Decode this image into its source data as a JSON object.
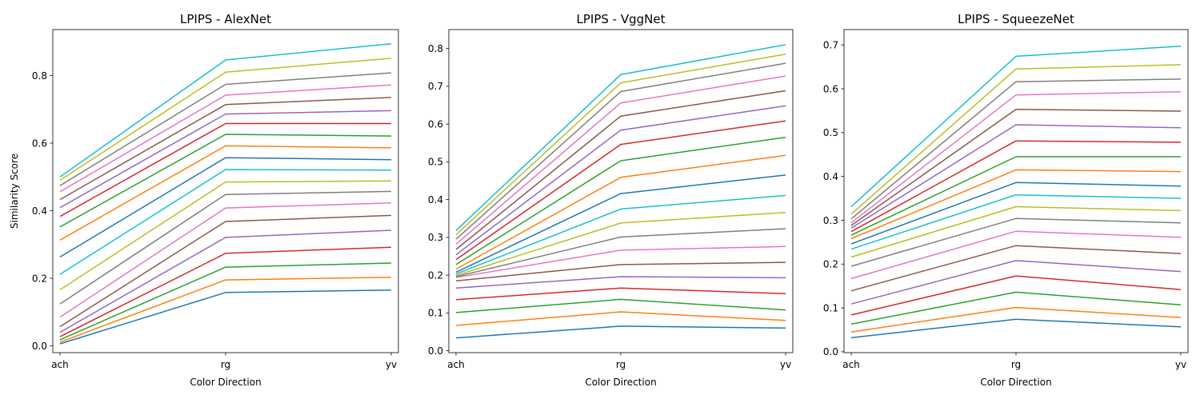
{
  "chart_data": [
    {
      "type": "line",
      "title": "LPIPS - AlexNet",
      "xlabel": "Color Direction",
      "ylabel": "Similarity Score",
      "categories": [
        "ach",
        "rg",
        "yv"
      ],
      "yticks": [
        "0.0",
        "0.2",
        "0.4",
        "0.6",
        "0.8"
      ],
      "ylim": [
        -0.02,
        0.936
      ],
      "grid": false,
      "series": [
        {
          "color": "#1f77b4",
          "values": [
            0.006,
            0.158,
            0.165
          ]
        },
        {
          "color": "#ff7f0e",
          "values": [
            0.011,
            0.195,
            0.203
          ]
        },
        {
          "color": "#2ca02c",
          "values": [
            0.018,
            0.233,
            0.245
          ]
        },
        {
          "color": "#d62728",
          "values": [
            0.027,
            0.274,
            0.292
          ]
        },
        {
          "color": "#9467bd",
          "values": [
            0.04,
            0.321,
            0.342
          ]
        },
        {
          "color": "#8c564b",
          "values": [
            0.057,
            0.368,
            0.386
          ]
        },
        {
          "color": "#e377c2",
          "values": [
            0.085,
            0.408,
            0.423
          ]
        },
        {
          "color": "#7f7f7f",
          "values": [
            0.124,
            0.448,
            0.457
          ]
        },
        {
          "color": "#bcbd22",
          "values": [
            0.166,
            0.485,
            0.488
          ]
        },
        {
          "color": "#17becf",
          "values": [
            0.212,
            0.522,
            0.52
          ]
        },
        {
          "color": "#1f77b4",
          "values": [
            0.263,
            0.557,
            0.551
          ]
        },
        {
          "color": "#ff7f0e",
          "values": [
            0.313,
            0.592,
            0.586
          ]
        },
        {
          "color": "#2ca02c",
          "values": [
            0.352,
            0.626,
            0.621
          ]
        },
        {
          "color": "#d62728",
          "values": [
            0.383,
            0.658,
            0.658
          ]
        },
        {
          "color": "#9467bd",
          "values": [
            0.409,
            0.686,
            0.696
          ]
        },
        {
          "color": "#8c564b",
          "values": [
            0.433,
            0.714,
            0.735
          ]
        },
        {
          "color": "#e377c2",
          "values": [
            0.456,
            0.742,
            0.772
          ]
        },
        {
          "color": "#7f7f7f",
          "values": [
            0.474,
            0.774,
            0.808
          ]
        },
        {
          "color": "#bcbd22",
          "values": [
            0.49,
            0.81,
            0.851
          ]
        },
        {
          "color": "#17becf",
          "values": [
            0.5,
            0.846,
            0.894
          ]
        }
      ]
    },
    {
      "type": "line",
      "title": "LPIPS - VggNet",
      "xlabel": "Color Direction",
      "ylabel": "",
      "categories": [
        "ach",
        "rg",
        "yv"
      ],
      "yticks": [
        "0.0",
        "0.1",
        "0.2",
        "0.3",
        "0.4",
        "0.5",
        "0.6",
        "0.7",
        "0.8"
      ],
      "ylim": [
        -0.005,
        0.85
      ],
      "grid": false,
      "series": [
        {
          "color": "#1f77b4",
          "values": [
            0.034,
            0.065,
            0.06
          ]
        },
        {
          "color": "#ff7f0e",
          "values": [
            0.067,
            0.103,
            0.08
          ]
        },
        {
          "color": "#2ca02c",
          "values": [
            0.101,
            0.136,
            0.108
          ]
        },
        {
          "color": "#d62728",
          "values": [
            0.135,
            0.166,
            0.151
          ]
        },
        {
          "color": "#9467bd",
          "values": [
            0.166,
            0.196,
            0.193
          ]
        },
        {
          "color": "#8c564b",
          "values": [
            0.185,
            0.228,
            0.234
          ]
        },
        {
          "color": "#e377c2",
          "values": [
            0.194,
            0.266,
            0.276
          ]
        },
        {
          "color": "#7f7f7f",
          "values": [
            0.196,
            0.301,
            0.323
          ]
        },
        {
          "color": "#bcbd22",
          "values": [
            0.199,
            0.338,
            0.366
          ]
        },
        {
          "color": "#17becf",
          "values": [
            0.203,
            0.375,
            0.411
          ]
        },
        {
          "color": "#1f77b4",
          "values": [
            0.208,
            0.416,
            0.465
          ]
        },
        {
          "color": "#ff7f0e",
          "values": [
            0.216,
            0.459,
            0.517
          ]
        },
        {
          "color": "#2ca02c",
          "values": [
            0.228,
            0.503,
            0.565
          ]
        },
        {
          "color": "#d62728",
          "values": [
            0.241,
            0.546,
            0.608
          ]
        },
        {
          "color": "#9467bd",
          "values": [
            0.254,
            0.584,
            0.648
          ]
        },
        {
          "color": "#8c564b",
          "values": [
            0.268,
            0.621,
            0.688
          ]
        },
        {
          "color": "#e377c2",
          "values": [
            0.282,
            0.656,
            0.727
          ]
        },
        {
          "color": "#7f7f7f",
          "values": [
            0.295,
            0.686,
            0.761
          ]
        },
        {
          "color": "#bcbd22",
          "values": [
            0.307,
            0.709,
            0.785
          ]
        },
        {
          "color": "#17becf",
          "values": [
            0.318,
            0.731,
            0.81
          ]
        }
      ]
    },
    {
      "type": "line",
      "title": "LPIPS - SqueezeNet",
      "xlabel": "Color Direction",
      "ylabel": "",
      "categories": [
        "ach",
        "rg",
        "yv"
      ],
      "yticks": [
        "0.0",
        "0.1",
        "0.2",
        "0.3",
        "0.4",
        "0.5",
        "0.6",
        "0.7"
      ],
      "ylim": [
        -0.002,
        0.735
      ],
      "grid": false,
      "series": [
        {
          "color": "#1f77b4",
          "values": [
            0.032,
            0.074,
            0.057
          ]
        },
        {
          "color": "#ff7f0e",
          "values": [
            0.045,
            0.101,
            0.078
          ]
        },
        {
          "color": "#2ca02c",
          "values": [
            0.063,
            0.136,
            0.107
          ]
        },
        {
          "color": "#d62728",
          "values": [
            0.084,
            0.173,
            0.142
          ]
        },
        {
          "color": "#9467bd",
          "values": [
            0.109,
            0.208,
            0.183
          ]
        },
        {
          "color": "#8c564b",
          "values": [
            0.139,
            0.242,
            0.224
          ]
        },
        {
          "color": "#e377c2",
          "values": [
            0.167,
            0.275,
            0.261
          ]
        },
        {
          "color": "#7f7f7f",
          "values": [
            0.195,
            0.304,
            0.294
          ]
        },
        {
          "color": "#bcbd22",
          "values": [
            0.216,
            0.331,
            0.322
          ]
        },
        {
          "color": "#17becf",
          "values": [
            0.234,
            0.358,
            0.35
          ]
        },
        {
          "color": "#1f77b4",
          "values": [
            0.246,
            0.386,
            0.378
          ]
        },
        {
          "color": "#ff7f0e",
          "values": [
            0.258,
            0.415,
            0.411
          ]
        },
        {
          "color": "#2ca02c",
          "values": [
            0.266,
            0.445,
            0.445
          ]
        },
        {
          "color": "#d62728",
          "values": [
            0.274,
            0.481,
            0.478
          ]
        },
        {
          "color": "#9467bd",
          "values": [
            0.282,
            0.518,
            0.511
          ]
        },
        {
          "color": "#8c564b",
          "values": [
            0.288,
            0.553,
            0.549
          ]
        },
        {
          "color": "#e377c2",
          "values": [
            0.294,
            0.586,
            0.593
          ]
        },
        {
          "color": "#7f7f7f",
          "values": [
            0.303,
            0.616,
            0.622
          ]
        },
        {
          "color": "#bcbd22",
          "values": [
            0.314,
            0.645,
            0.655
          ]
        },
        {
          "color": "#17becf",
          "values": [
            0.331,
            0.674,
            0.697
          ]
        }
      ]
    }
  ]
}
